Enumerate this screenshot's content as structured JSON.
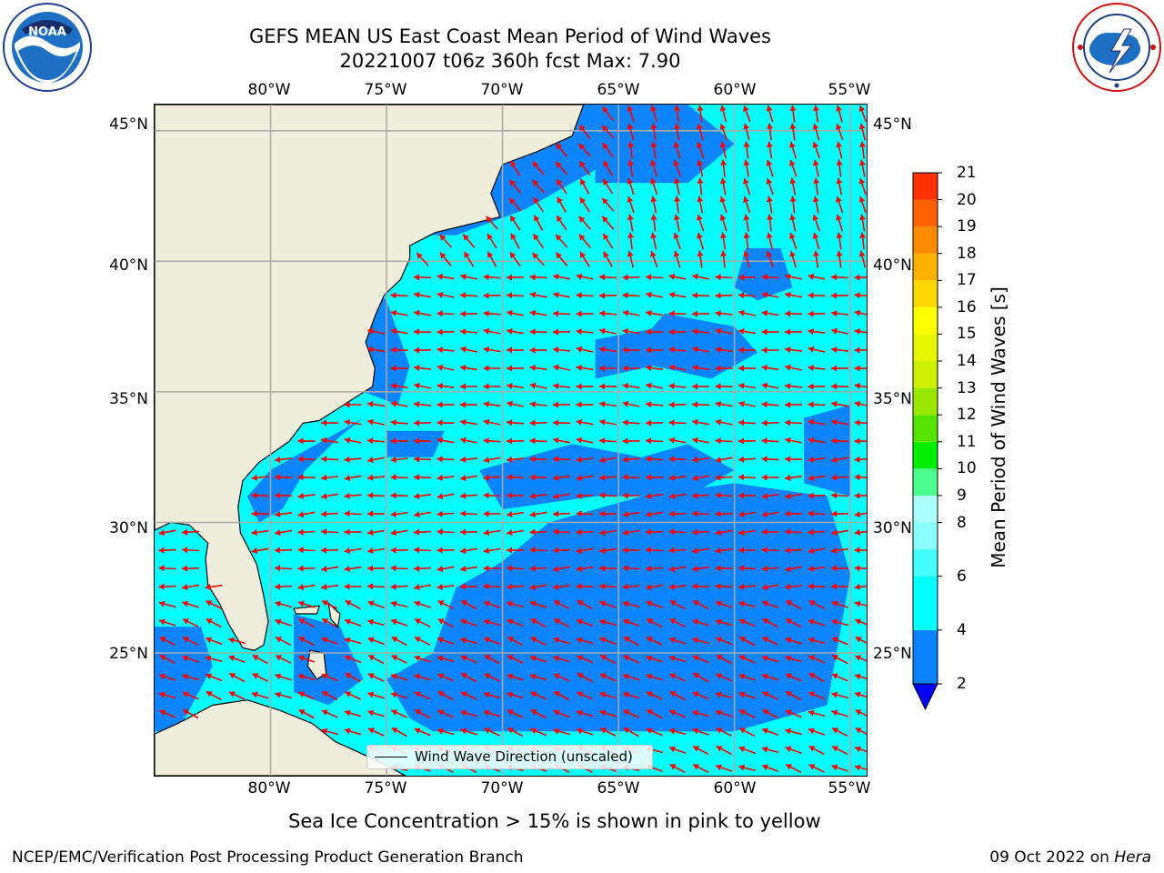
{
  "title": {
    "line1": "GEFS MEAN US East Coast Mean Period of Wind Waves",
    "line2": "20221007 t06z 360h fcst   Max: 7.90"
  },
  "logos": {
    "noaa": {
      "text": "NOAA",
      "ring": "NATIONAL OCEANIC AND ATMOSPHERIC ADMINISTRATION · U.S. DEPARTMENT OF COMMERCE"
    },
    "nws": {
      "ring": "NATIONAL WEATHER SERVICE"
    }
  },
  "map": {
    "lon_ticks": [
      "80°W",
      "75°W",
      "70°W",
      "65°W",
      "60°W",
      "55°W"
    ],
    "lat_ticks": [
      "45°N",
      "40°N",
      "35°N",
      "30°N",
      "25°N"
    ],
    "extent": {
      "lon": [
        -85,
        -54.3
      ],
      "lat": [
        20.3,
        46
      ]
    },
    "colors": {
      "land": "#efeedc",
      "ocean_low": "#0a84ff",
      "ocean_mid": "#00ffff",
      "arrow": "#ff0000",
      "grid": "#aaaaaa"
    },
    "arrow_direction_note": "wind wave arrows point mostly westward"
  },
  "legend": {
    "label": "Wind Wave Direction (unscaled)"
  },
  "colorbar": {
    "title": "Mean Period of Wind Waves [s]",
    "levels": [
      "2",
      "4",
      "6",
      "7",
      "8",
      "9",
      "10",
      "11",
      "12",
      "13",
      "14",
      "15",
      "16",
      "17",
      "18",
      "19",
      "20",
      "21"
    ],
    "tick_labels": [
      "2",
      "4",
      "6",
      "8",
      "9",
      "10",
      "11",
      "12",
      "13",
      "14",
      "15",
      "16",
      "17",
      "18",
      "19",
      "20",
      "21"
    ],
    "colors": [
      "#0a82ff",
      "#00ffff",
      "#44fdfd",
      "#88ffff",
      "#aaffff",
      "#4cff8c",
      "#00ee00",
      "#55e300",
      "#99e600",
      "#ccf000",
      "#e6f700",
      "#ffff00",
      "#ffd700",
      "#ffb000",
      "#ff8c00",
      "#ff6000",
      "#ff3300",
      "#ff0000"
    ],
    "under_color": "#0000ff"
  },
  "subtitle": "Sea Ice Concentration > 15% is shown in pink to yellow",
  "footer": {
    "left": "NCEP/EMC/Verification Post Processing Product Generation Branch",
    "right_prefix": "09 Oct 2022 on ",
    "right_machine": "Hera"
  }
}
